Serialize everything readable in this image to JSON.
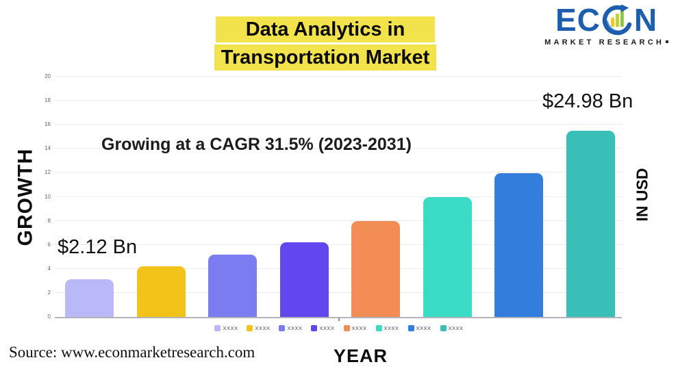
{
  "header": {
    "title_line1": "Data Analytics in",
    "title_line2": "Transportation Market",
    "highlight_color": "#f2e24b"
  },
  "logo": {
    "brand_prefix": "EC",
    "brand_suffix": "N",
    "tagline": "MARKET RESEARCH",
    "brand_color": "#1d5fae",
    "icon": "growth-bars-circle-arrow"
  },
  "axes": {
    "y_left_label": "GROWTH",
    "y_right_label": "IN USD",
    "x_label": "YEAR"
  },
  "annotations": {
    "cagr": "Growing at a CAGR 31.5% (2023-2031)",
    "first_value": "$2.12 Bn",
    "last_value": "$24.98 Bn"
  },
  "source": "Source: www.econmarketresearch.com",
  "chart_data": {
    "type": "bar",
    "title": "Data Analytics in Transportation Market",
    "subtitle": "Growing at a CAGR 31.5% (2023-2031)",
    "categories": [
      "XXXX",
      "XXXX",
      "XXXX",
      "XXXX",
      "XXXX",
      "XXXX",
      "XXXX",
      "XXXX"
    ],
    "values": [
      3.15,
      4.2,
      5.2,
      6.2,
      8,
      10,
      11.95,
      15.5
    ],
    "bar_colors": [
      "#b9b9f7",
      "#f2c318",
      "#7a7cf0",
      "#6347ee",
      "#f28e55",
      "#3adcc6",
      "#337ddd",
      "#3abfb8"
    ],
    "value_labels": {
      "first": "$2.12 Bn",
      "last": "$24.98 Bn"
    },
    "xlabel": "YEAR",
    "ylabel": "GROWTH",
    "ylabel_right": "IN USD",
    "ylim": [
      0,
      20
    ],
    "yticks": [
      0,
      2,
      4,
      6,
      8,
      10,
      12,
      14,
      16,
      18,
      20
    ],
    "grid": true,
    "legend_position": "bottom"
  }
}
